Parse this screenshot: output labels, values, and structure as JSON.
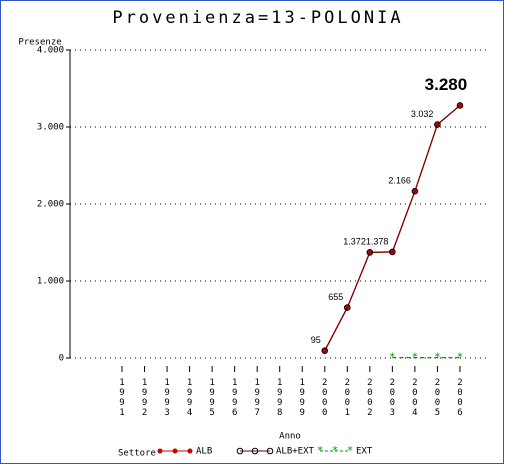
{
  "chart_data": {
    "type": "line",
    "title": "Provenienza=13-POLONIA",
    "y_label": "Presenze",
    "x_label": "Anno",
    "legend_title": "Settore",
    "categories": [
      "1991",
      "1992",
      "1993",
      "1994",
      "1995",
      "1996",
      "1997",
      "1998",
      "1999",
      "2000",
      "2001",
      "2002",
      "2003",
      "2004",
      "2005",
      "2006"
    ],
    "series": [
      {
        "name": "ALB",
        "color": "#cc0000",
        "marker": "dot",
        "values": [
          null,
          null,
          null,
          null,
          null,
          null,
          null,
          null,
          null,
          95,
          655,
          1372,
          1378,
          2166,
          3032,
          3280
        ]
      },
      {
        "name": "ALB+EXT",
        "color": "#000000",
        "line_color": "#800000",
        "marker": "circle",
        "values": [
          null,
          null,
          null,
          null,
          null,
          null,
          null,
          null,
          null,
          95,
          655,
          1372,
          1378,
          2166,
          3032,
          3280
        ],
        "value_labels": [
          null,
          null,
          null,
          null,
          null,
          null,
          null,
          null,
          null,
          "95",
          "655",
          "1.372",
          "1.378",
          "2.166",
          "3.032",
          "3.280"
        ]
      },
      {
        "name": "EXT",
        "color": "#009900",
        "marker": "star",
        "values": [
          null,
          null,
          null,
          null,
          null,
          null,
          null,
          null,
          null,
          null,
          null,
          null,
          5,
          5,
          5,
          5
        ]
      }
    ],
    "ylim": [
      0,
      4000
    ],
    "yticks": [
      0,
      {
        "value": 1000,
        "label": "1.000"
      },
      {
        "value": 2000,
        "label": "2.000"
      },
      {
        "value": 3000,
        "label": "3.000"
      },
      {
        "value": 4000,
        "label": "4.000"
      }
    ],
    "grid": true
  }
}
